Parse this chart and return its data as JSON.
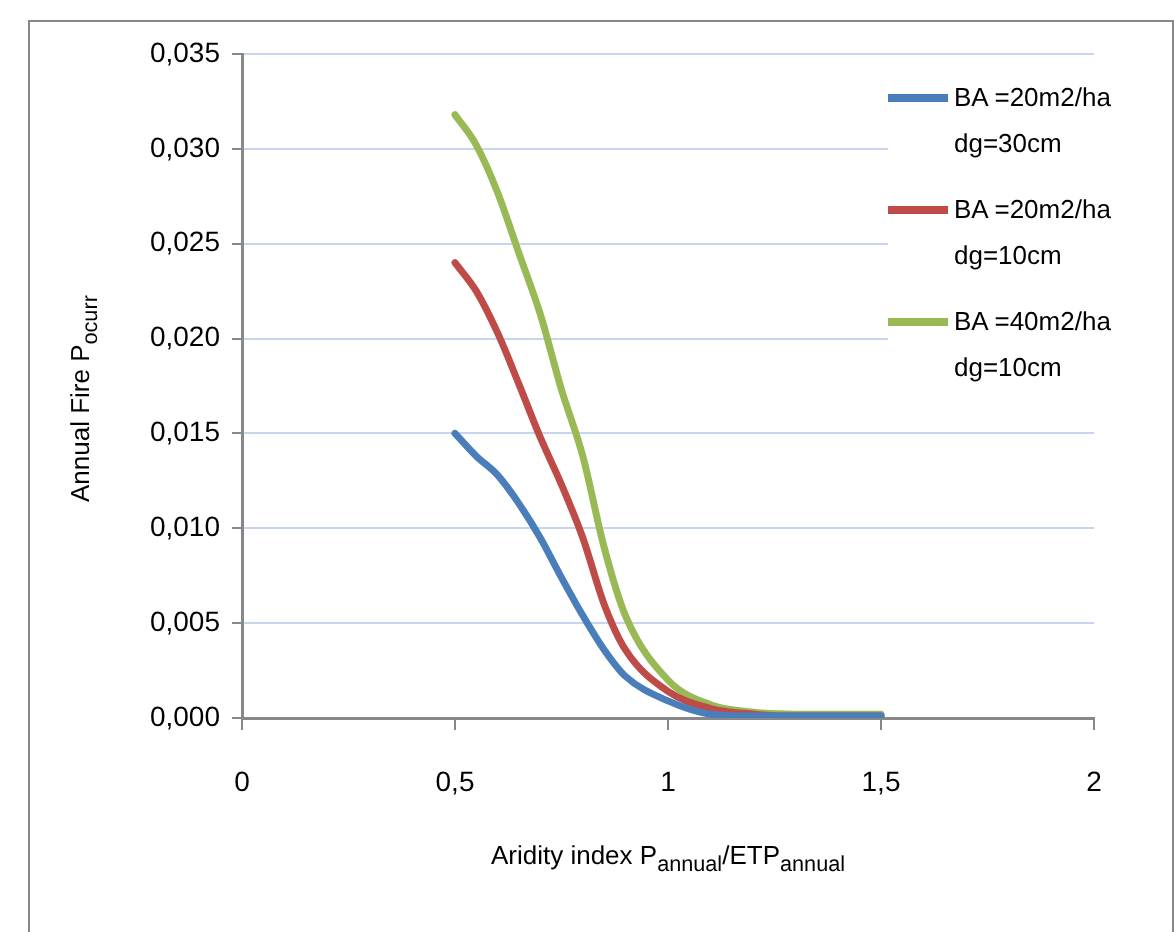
{
  "chart_data": {
    "type": "line",
    "xlabel": "Aridity index P$_{annual}$/ETP$_{annual}$",
    "ylabel": "Annual Fire P$_{ocurr}$",
    "xlim": [
      0,
      2
    ],
    "xticks": [
      0,
      {
        "value": 0.5,
        "label": "0,5"
      },
      1,
      {
        "value": 1.5,
        "label": "1,5"
      },
      2
    ],
    "ylim": [
      0,
      0.035
    ],
    "yticks": [
      {
        "value": 0,
        "label": "0,000"
      },
      {
        "value": 0.005,
        "label": "0,005"
      },
      {
        "value": 0.01,
        "label": "0,010"
      },
      {
        "value": 0.015,
        "label": "0,015"
      },
      {
        "value": 0.02,
        "label": "0,020"
      },
      {
        "value": 0.025,
        "label": "0,025"
      },
      {
        "value": 0.03,
        "label": "0,030"
      },
      {
        "value": 0.035,
        "label": "0,035"
      }
    ],
    "grid": "y",
    "legend": "right",
    "marker": "none",
    "line_style": "solid",
    "x": [
      0.5,
      0.55,
      0.6,
      0.65,
      0.7,
      0.75,
      0.8,
      0.85,
      0.9,
      1.0,
      1.1,
      1.2,
      1.3,
      1.5
    ],
    "series": [
      {
        "name": "BA =20m2/ha dg=30cm",
        "color": "#4a7ebb",
        "values": [
          0.015,
          0.0138,
          0.0128,
          0.0113,
          0.0095,
          0.0074,
          0.0054,
          0.0036,
          0.0022,
          0.0009,
          0.0002,
          0.0001,
          0.0001,
          0.0001
        ]
      },
      {
        "name": "BA =20m2/ha dg=10cm",
        "color": "#be4b48",
        "values": [
          0.024,
          0.0225,
          0.0203,
          0.0176,
          0.0148,
          0.0123,
          0.0095,
          0.006,
          0.0036,
          0.0014,
          0.0005,
          0.0002,
          0.0001,
          0.0001
        ]
      },
      {
        "name": "BA =40m2/ha dg=10cm",
        "color": "#98b954",
        "values": [
          0.0318,
          0.0302,
          0.0277,
          0.0245,
          0.0213,
          0.0173,
          0.0138,
          0.009,
          0.0054,
          0.002,
          0.0007,
          0.0003,
          0.0002,
          0.0002
        ]
      }
    ]
  }
}
